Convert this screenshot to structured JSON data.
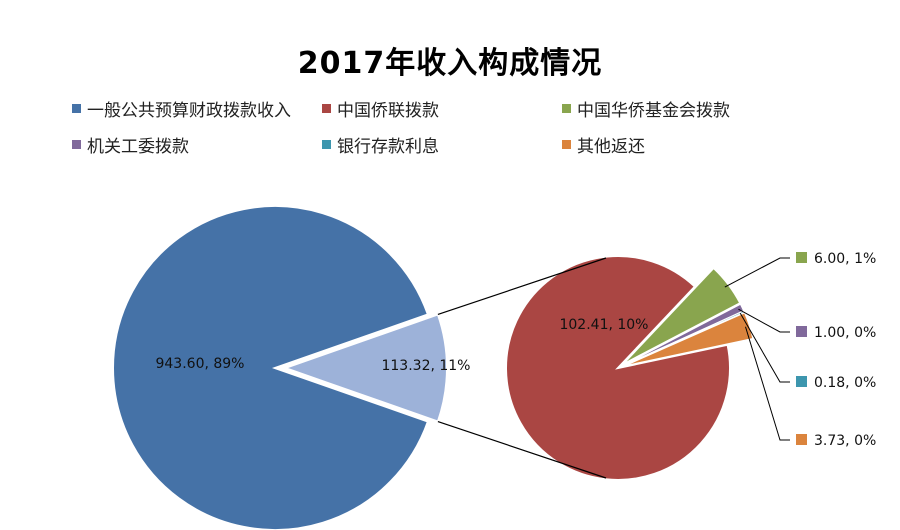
{
  "chart_data": {
    "type": "pie",
    "subtype": "bar-of-pie",
    "title": "2017年收入构成情况",
    "legend_position": "top",
    "main_pie": {
      "slices": [
        {
          "label": "一般公共预算财政拨款收入",
          "value": 943.6,
          "percent": "89%",
          "data_label": "943.60, 89%",
          "color": "#4572A7"
        },
        {
          "label": "",
          "value": 113.32,
          "percent": "11%",
          "data_label": "113.32, 11%",
          "color": "#9DB2D9"
        }
      ]
    },
    "secondary_pie": {
      "slices": [
        {
          "label": "中国侨联拨款",
          "value": 102.41,
          "percent": "10%",
          "data_label": "102.41, 10%",
          "color": "#AA4643"
        },
        {
          "label": "中国华侨基金会拨款",
          "value": 6.0,
          "percent": "1%",
          "data_label": "6.00, 1%",
          "color": "#89A54E"
        },
        {
          "label": "机关工委拨款",
          "value": 1.0,
          "percent": "0%",
          "data_label": "1.00, 0%",
          "color": "#80699B"
        },
        {
          "label": "银行存款利息",
          "value": 0.18,
          "percent": "0%",
          "data_label": "0.18, 0%",
          "color": "#3D96AE"
        },
        {
          "label": "其他返还",
          "value": 3.73,
          "percent": "0%",
          "data_label": "3.73, 0%",
          "color": "#DB843D"
        }
      ]
    },
    "legend": [
      {
        "label": "一般公共预算财政拨款收入",
        "color": "#4572A7"
      },
      {
        "label": "中国侨联拨款",
        "color": "#AA4643"
      },
      {
        "label": "中国华侨基金会拨款",
        "color": "#89A54E"
      },
      {
        "label": "机关工委拨款",
        "color": "#80699B"
      },
      {
        "label": "银行存款利息",
        "color": "#3D96AE"
      },
      {
        "label": "其他返还",
        "color": "#DB843D"
      }
    ]
  }
}
